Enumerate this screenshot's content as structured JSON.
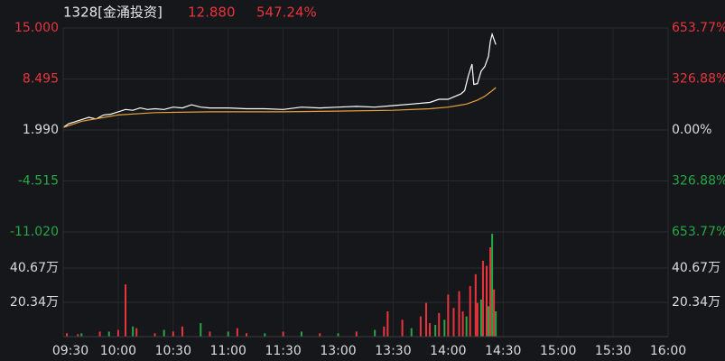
{
  "chart_data": [
    {
      "type": "line",
      "title": "1328[金涌投资]",
      "price": "12.880",
      "change": "547.24%",
      "xlim": [
        0,
        330
      ],
      "ylim": [
        -11.02,
        15
      ],
      "yticks": [
        {
          "value": 15,
          "label": "15.000"
        },
        8.495,
        {
          "value": 1.99,
          "label": "1.990"
        },
        {
          "value": -4.515,
          "label": "-4.515"
        },
        {
          "value": -11.02,
          "label": "-11.020"
        }
      ],
      "y2lim": [
        -653.77,
        653.77
      ],
      "y2ticks": [
        {
          "value": 653.77,
          "label": "653.77%"
        },
        {
          "value": 326.88,
          "label": "326.88%"
        },
        {
          "value": 0,
          "label": "0.00%"
        },
        {
          "value": -326.88,
          "label": "326.88%"
        },
        {
          "value": -653.77,
          "label": "653.77%"
        }
      ],
      "grid": true,
      "series": [
        {
          "color": "#ffffff",
          "x": [
            0,
            3,
            6,
            10,
            14,
            18,
            22,
            26,
            30,
            34,
            38,
            42,
            46,
            50,
            55,
            60,
            65,
            70,
            75,
            80,
            90,
            100,
            110,
            120,
            130,
            140,
            150,
            160,
            170,
            180,
            190,
            200,
            205,
            210,
            214,
            217,
            219,
            221,
            223,
            224,
            226,
            228,
            230,
            232,
            233,
            234,
            236
          ],
          "values": [
            2.3,
            2.8,
            3.0,
            3.3,
            3.6,
            3.4,
            3.9,
            4.0,
            4.3,
            4.6,
            4.5,
            4.8,
            4.6,
            4.7,
            4.6,
            4.9,
            4.8,
            5.2,
            4.9,
            4.8,
            4.8,
            4.7,
            4.7,
            4.6,
            4.9,
            4.8,
            4.9,
            5.0,
            4.9,
            5.1,
            5.3,
            5.5,
            5.9,
            5.9,
            6.3,
            6.6,
            7.0,
            8.9,
            10.4,
            7.8,
            7.9,
            9.5,
            10.1,
            11.4,
            13.3,
            14.2,
            12.88
          ]
        },
        {
          "color": "#e6a23c",
          "x": [
            0,
            10,
            20,
            30,
            50,
            80,
            120,
            150,
            180,
            200,
            210,
            220,
            226,
            230,
            234,
            236
          ],
          "values": [
            2.3,
            3.1,
            3.5,
            3.9,
            4.2,
            4.3,
            4.3,
            4.4,
            4.5,
            4.7,
            4.9,
            5.3,
            5.8,
            6.3,
            7.0,
            7.4
          ]
        }
      ]
    },
    {
      "type": "bar",
      "xlim": [
        0,
        330
      ],
      "xticks": [
        {
          "value": 0,
          "label": "09:30"
        },
        {
          "value": 30,
          "label": "10:00"
        },
        {
          "value": 60,
          "label": "10:30"
        },
        {
          "value": 90,
          "label": "11:00"
        },
        {
          "value": 120,
          "label": "11:30"
        },
        {
          "value": 150,
          "label": "13:00"
        },
        {
          "value": 180,
          "label": "13:30"
        },
        {
          "value": 210,
          "label": "14:00"
        },
        {
          "value": 240,
          "label": "14:30"
        },
        {
          "value": 270,
          "label": "15:00"
        },
        {
          "value": 300,
          "label": "15:30"
        },
        {
          "value": 330,
          "label": "16:00"
        }
      ],
      "ylim": [
        0,
        62.1
      ],
      "yticks": [
        {
          "value": 40.67,
          "label": "40.67万"
        },
        {
          "value": 20.34,
          "label": "20.34万"
        }
      ],
      "grid": true,
      "series": [
        {
          "color": "#e8353d",
          "x": [
            2,
            8,
            20,
            30,
            34,
            40,
            50,
            60,
            65,
            80,
            95,
            100,
            120,
            140,
            160,
            175,
            177,
            185,
            195,
            198,
            200,
            205,
            210,
            213,
            216,
            218,
            222,
            225,
            226,
            229,
            231,
            233,
            235
          ],
          "values": [
            2,
            1.5,
            3,
            4,
            31,
            5,
            2,
            3,
            6,
            3,
            5,
            2,
            3,
            2,
            3,
            6,
            15,
            10,
            12,
            20,
            8,
            14,
            25,
            17,
            27,
            15,
            30,
            37,
            20,
            45,
            42,
            53,
            28
          ]
        },
        {
          "color": "#25a745",
          "x": [
            10,
            25,
            38,
            55,
            75,
            90,
            110,
            130,
            150,
            170,
            190,
            203,
            208,
            220,
            228,
            232,
            234,
            236
          ],
          "values": [
            2,
            3,
            6,
            4,
            8,
            3,
            2,
            3,
            2,
            4,
            5,
            7,
            10,
            12,
            22,
            18,
            61,
            15
          ]
        }
      ]
    }
  ]
}
